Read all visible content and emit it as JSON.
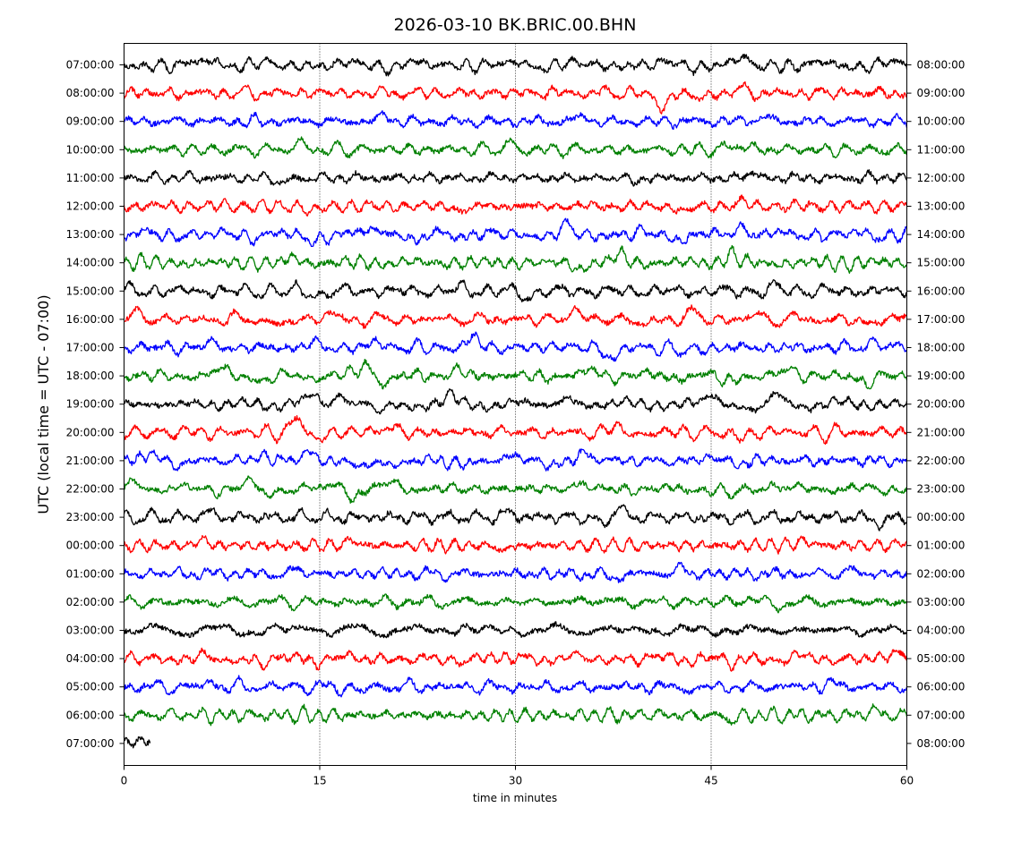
{
  "chart_data": {
    "type": "line",
    "title": "2026-03-10 BK.BRIC.00.BHN",
    "xlabel": "time in minutes",
    "ylabel": "UTC (local time = UTC - 07:00)",
    "xlim": [
      0,
      60
    ],
    "x_ticks": [
      "0",
      "15",
      "30",
      "45",
      "60"
    ],
    "x_tick_values": [
      0,
      15,
      30,
      45,
      60
    ],
    "vertical_gridlines_at": [
      15,
      30,
      45
    ],
    "grid": "dotted vertical lines",
    "left_tick_labels": [
      "07:00:00",
      "08:00:00",
      "09:00:00",
      "10:00:00",
      "11:00:00",
      "12:00:00",
      "13:00:00",
      "14:00:00",
      "15:00:00",
      "16:00:00",
      "17:00:00",
      "18:00:00",
      "19:00:00",
      "20:00:00",
      "21:00:00",
      "22:00:00",
      "23:00:00",
      "00:00:00",
      "01:00:00",
      "02:00:00",
      "03:00:00",
      "04:00:00",
      "05:00:00",
      "06:00:00",
      "07:00:00"
    ],
    "right_tick_labels": [
      "08:00:00",
      "09:00:00",
      "10:00:00",
      "11:00:00",
      "12:00:00",
      "13:00:00",
      "14:00:00",
      "15:00:00",
      "16:00:00",
      "17:00:00",
      "18:00:00",
      "19:00:00",
      "20:00:00",
      "21:00:00",
      "22:00:00",
      "23:00:00",
      "00:00:00",
      "01:00:00",
      "02:00:00",
      "03:00:00",
      "04:00:00",
      "05:00:00",
      "06:00:00",
      "07:00:00",
      "08:00:00"
    ],
    "trace_colors": [
      "#000000",
      "#ff0000",
      "#0000ff",
      "#008000"
    ],
    "traces": [
      {
        "row": "07:00:00",
        "duration_min": 60,
        "events": [
          [
            7,
            0.5
          ],
          [
            47.5,
            0.4
          ]
        ]
      },
      {
        "row": "08:00:00",
        "duration_min": 60,
        "events": [
          [
            41.2,
            -1.2
          ],
          [
            44.2,
            -0.5
          ],
          [
            47.5,
            0.3
          ]
        ]
      },
      {
        "row": "09:00:00",
        "duration_min": 60,
        "events": [
          [
            20,
            0.5
          ],
          [
            35,
            0.4
          ],
          [
            49,
            0.4
          ]
        ]
      },
      {
        "row": "10:00:00",
        "duration_min": 60,
        "events": [
          [
            13.5,
            0.5
          ],
          [
            29.5,
            0.4
          ],
          [
            47,
            0.5
          ]
        ]
      },
      {
        "row": "11:00:00",
        "duration_min": 60,
        "events": [
          [
            12,
            -0.4
          ],
          [
            48,
            0.4
          ],
          [
            39,
            -0.3
          ]
        ]
      },
      {
        "row": "12:00:00",
        "duration_min": 60,
        "events": [
          [
            14.5,
            -0.4
          ],
          [
            26,
            -0.4
          ],
          [
            43,
            -0.4
          ],
          [
            47.5,
            0.4
          ]
        ]
      },
      {
        "row": "13:00:00",
        "duration_min": 60,
        "events": [
          [
            14.5,
            -0.6
          ],
          [
            19.5,
            0.6
          ],
          [
            22.5,
            -0.6
          ],
          [
            34,
            0.5
          ],
          [
            43,
            -0.5
          ],
          [
            47.5,
            0.7
          ]
        ]
      },
      {
        "row": "14:00:00",
        "duration_min": 60,
        "events": [
          [
            13,
            0.4
          ],
          [
            35,
            -0.5
          ],
          [
            38,
            0.6
          ],
          [
            46.5,
            0.6
          ]
        ]
      },
      {
        "row": "15:00:00",
        "duration_min": 60,
        "events": [
          [
            15,
            -0.4
          ],
          [
            26,
            0.3
          ],
          [
            31,
            -0.5
          ],
          [
            50,
            0.3
          ]
        ]
      },
      {
        "row": "16:00:00",
        "duration_min": 60,
        "events": [
          [
            1,
            0.4
          ],
          [
            12,
            -0.6
          ],
          [
            15.5,
            0.5
          ],
          [
            34.5,
            0.7
          ],
          [
            40,
            -0.5
          ],
          [
            43.5,
            0.6
          ],
          [
            48.5,
            0.4
          ],
          [
            56.5,
            -0.4
          ]
        ]
      },
      {
        "row": "17:00:00",
        "duration_min": 60,
        "events": [
          [
            6.5,
            0.4
          ],
          [
            14.5,
            0.4
          ],
          [
            19.5,
            0.5
          ],
          [
            26.8,
            0.8
          ],
          [
            33,
            0.3
          ],
          [
            37.5,
            -0.9
          ],
          [
            43,
            -0.5
          ],
          [
            57.5,
            0.5
          ]
        ]
      },
      {
        "row": "18:00:00",
        "duration_min": 60,
        "events": [
          [
            7.5,
            0.5
          ],
          [
            11,
            -0.5
          ],
          [
            18.5,
            0.9
          ],
          [
            20,
            -0.5
          ],
          [
            25.5,
            0.5
          ],
          [
            36,
            0.5
          ],
          [
            46,
            -0.5
          ],
          [
            51,
            0.6
          ],
          [
            57,
            -0.7
          ]
        ]
      },
      {
        "row": "19:00:00",
        "duration_min": 60,
        "events": [
          [
            14.5,
            0.6
          ],
          [
            16.5,
            0.9
          ],
          [
            19.5,
            -0.7
          ],
          [
            25,
            0.5
          ],
          [
            34,
            0.5
          ],
          [
            45,
            0.6
          ],
          [
            48.5,
            -0.4
          ],
          [
            50,
            0.5
          ]
        ]
      },
      {
        "row": "20:00:00",
        "duration_min": 60,
        "events": [
          [
            13.3,
            1.0
          ],
          [
            15,
            -0.5
          ],
          [
            20,
            0.5
          ],
          [
            37.8,
            0.6
          ],
          [
            39,
            -0.4
          ],
          [
            47,
            -0.5
          ]
        ]
      },
      {
        "row": "21:00:00",
        "duration_min": 60,
        "events": [
          [
            2,
            0.7
          ],
          [
            4,
            -0.4
          ],
          [
            10.5,
            0.5
          ],
          [
            14,
            0.7
          ],
          [
            18,
            -0.6
          ],
          [
            20.5,
            -0.5
          ],
          [
            26,
            -0.4
          ],
          [
            30,
            0.5
          ],
          [
            32.5,
            -0.5
          ],
          [
            35.5,
            0.6
          ],
          [
            45,
            0.4
          ],
          [
            47,
            -0.3
          ]
        ]
      },
      {
        "row": "22:00:00",
        "duration_min": 60,
        "events": [
          [
            1,
            0.5
          ],
          [
            9.5,
            0.5
          ],
          [
            11,
            -0.4
          ],
          [
            16.5,
            0.6
          ],
          [
            17.5,
            -0.8
          ],
          [
            20.5,
            0.6
          ],
          [
            35,
            0.5
          ],
          [
            46.5,
            -0.6
          ],
          [
            49.5,
            0.4
          ]
        ]
      },
      {
        "row": "23:00:00",
        "duration_min": 60,
        "events": [
          [
            6.5,
            0.4
          ],
          [
            29.5,
            0.4
          ],
          [
            36.5,
            -0.5
          ],
          [
            38,
            0.6
          ],
          [
            58,
            -0.5
          ]
        ]
      },
      {
        "row": "00:00:00",
        "duration_min": 60,
        "events": [
          [
            6,
            0.4
          ],
          [
            17.5,
            0.4
          ],
          [
            29,
            -0.4
          ],
          [
            52,
            0.4
          ],
          [
            60,
            0.4
          ]
        ]
      },
      {
        "row": "01:00:00",
        "duration_min": 60,
        "events": [
          [
            13.5,
            0.3
          ],
          [
            37.5,
            -0.4
          ],
          [
            42.5,
            0.4
          ],
          [
            55.5,
            0.3
          ]
        ]
      },
      {
        "row": "02:00:00",
        "duration_min": 60,
        "events": [
          [
            36,
            0.3
          ],
          [
            48,
            0.3
          ],
          [
            50,
            -0.4
          ]
        ]
      },
      {
        "row": "03:00:00",
        "duration_min": 60,
        "events": [
          [
            14,
            0.3
          ],
          [
            26,
            0.3
          ]
        ]
      },
      {
        "row": "04:00:00",
        "duration_min": 60,
        "events": [
          [
            10.5,
            -0.4
          ],
          [
            24,
            -0.3
          ],
          [
            46.5,
            -0.4
          ],
          [
            59.5,
            0.3
          ]
        ]
      },
      {
        "row": "05:00:00",
        "duration_min": 60,
        "events": [
          [
            6.5,
            0.3
          ],
          [
            18,
            -0.3
          ],
          [
            43.5,
            -0.3
          ],
          [
            54,
            0.3
          ]
        ]
      },
      {
        "row": "06:00:00",
        "duration_min": 60,
        "events": [
          [
            46.5,
            -0.4
          ],
          [
            57.5,
            0.4
          ]
        ]
      },
      {
        "row": "07:00:00",
        "duration_min": 2,
        "events": [
          [
            1.5,
            0.3
          ]
        ]
      }
    ]
  }
}
